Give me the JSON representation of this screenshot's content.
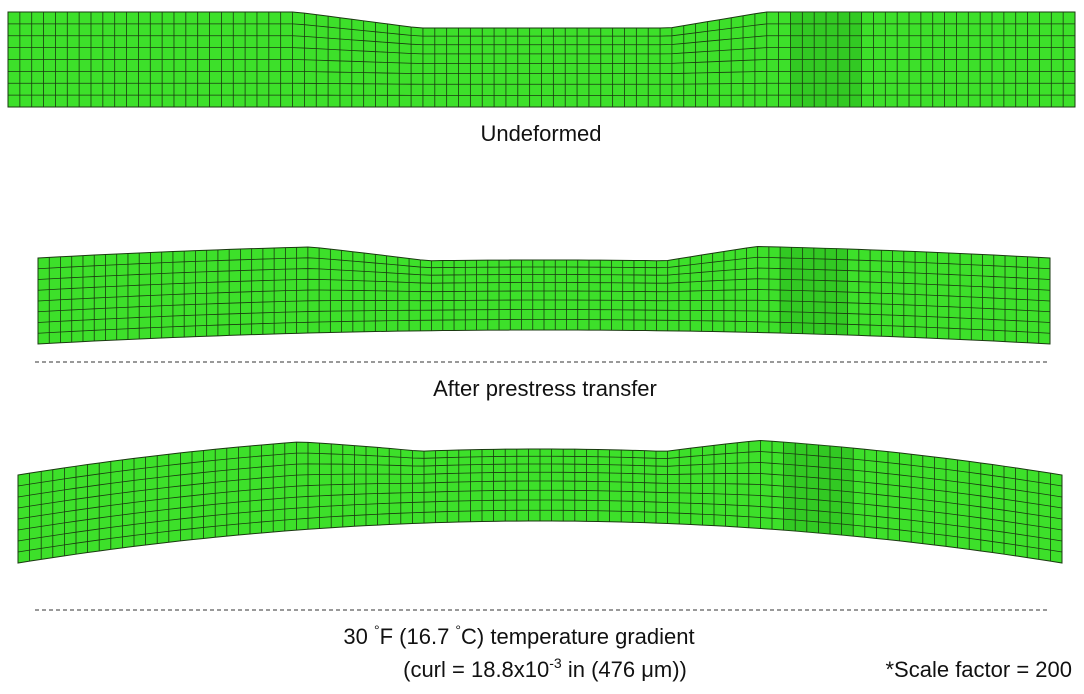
{
  "panels": [
    {
      "caption": "Undeformed"
    },
    {
      "caption": "After prestress transfer"
    },
    {
      "caption_parts": [
        "30 ",
        "°",
        "F (16.7 ",
        "°",
        "C) temperature gradient"
      ],
      "curl_parts": [
        "(curl = 18.8x10",
        "-3",
        " in (476 μm))"
      ]
    }
  ],
  "scale_note": "*Scale factor = 200"
}
